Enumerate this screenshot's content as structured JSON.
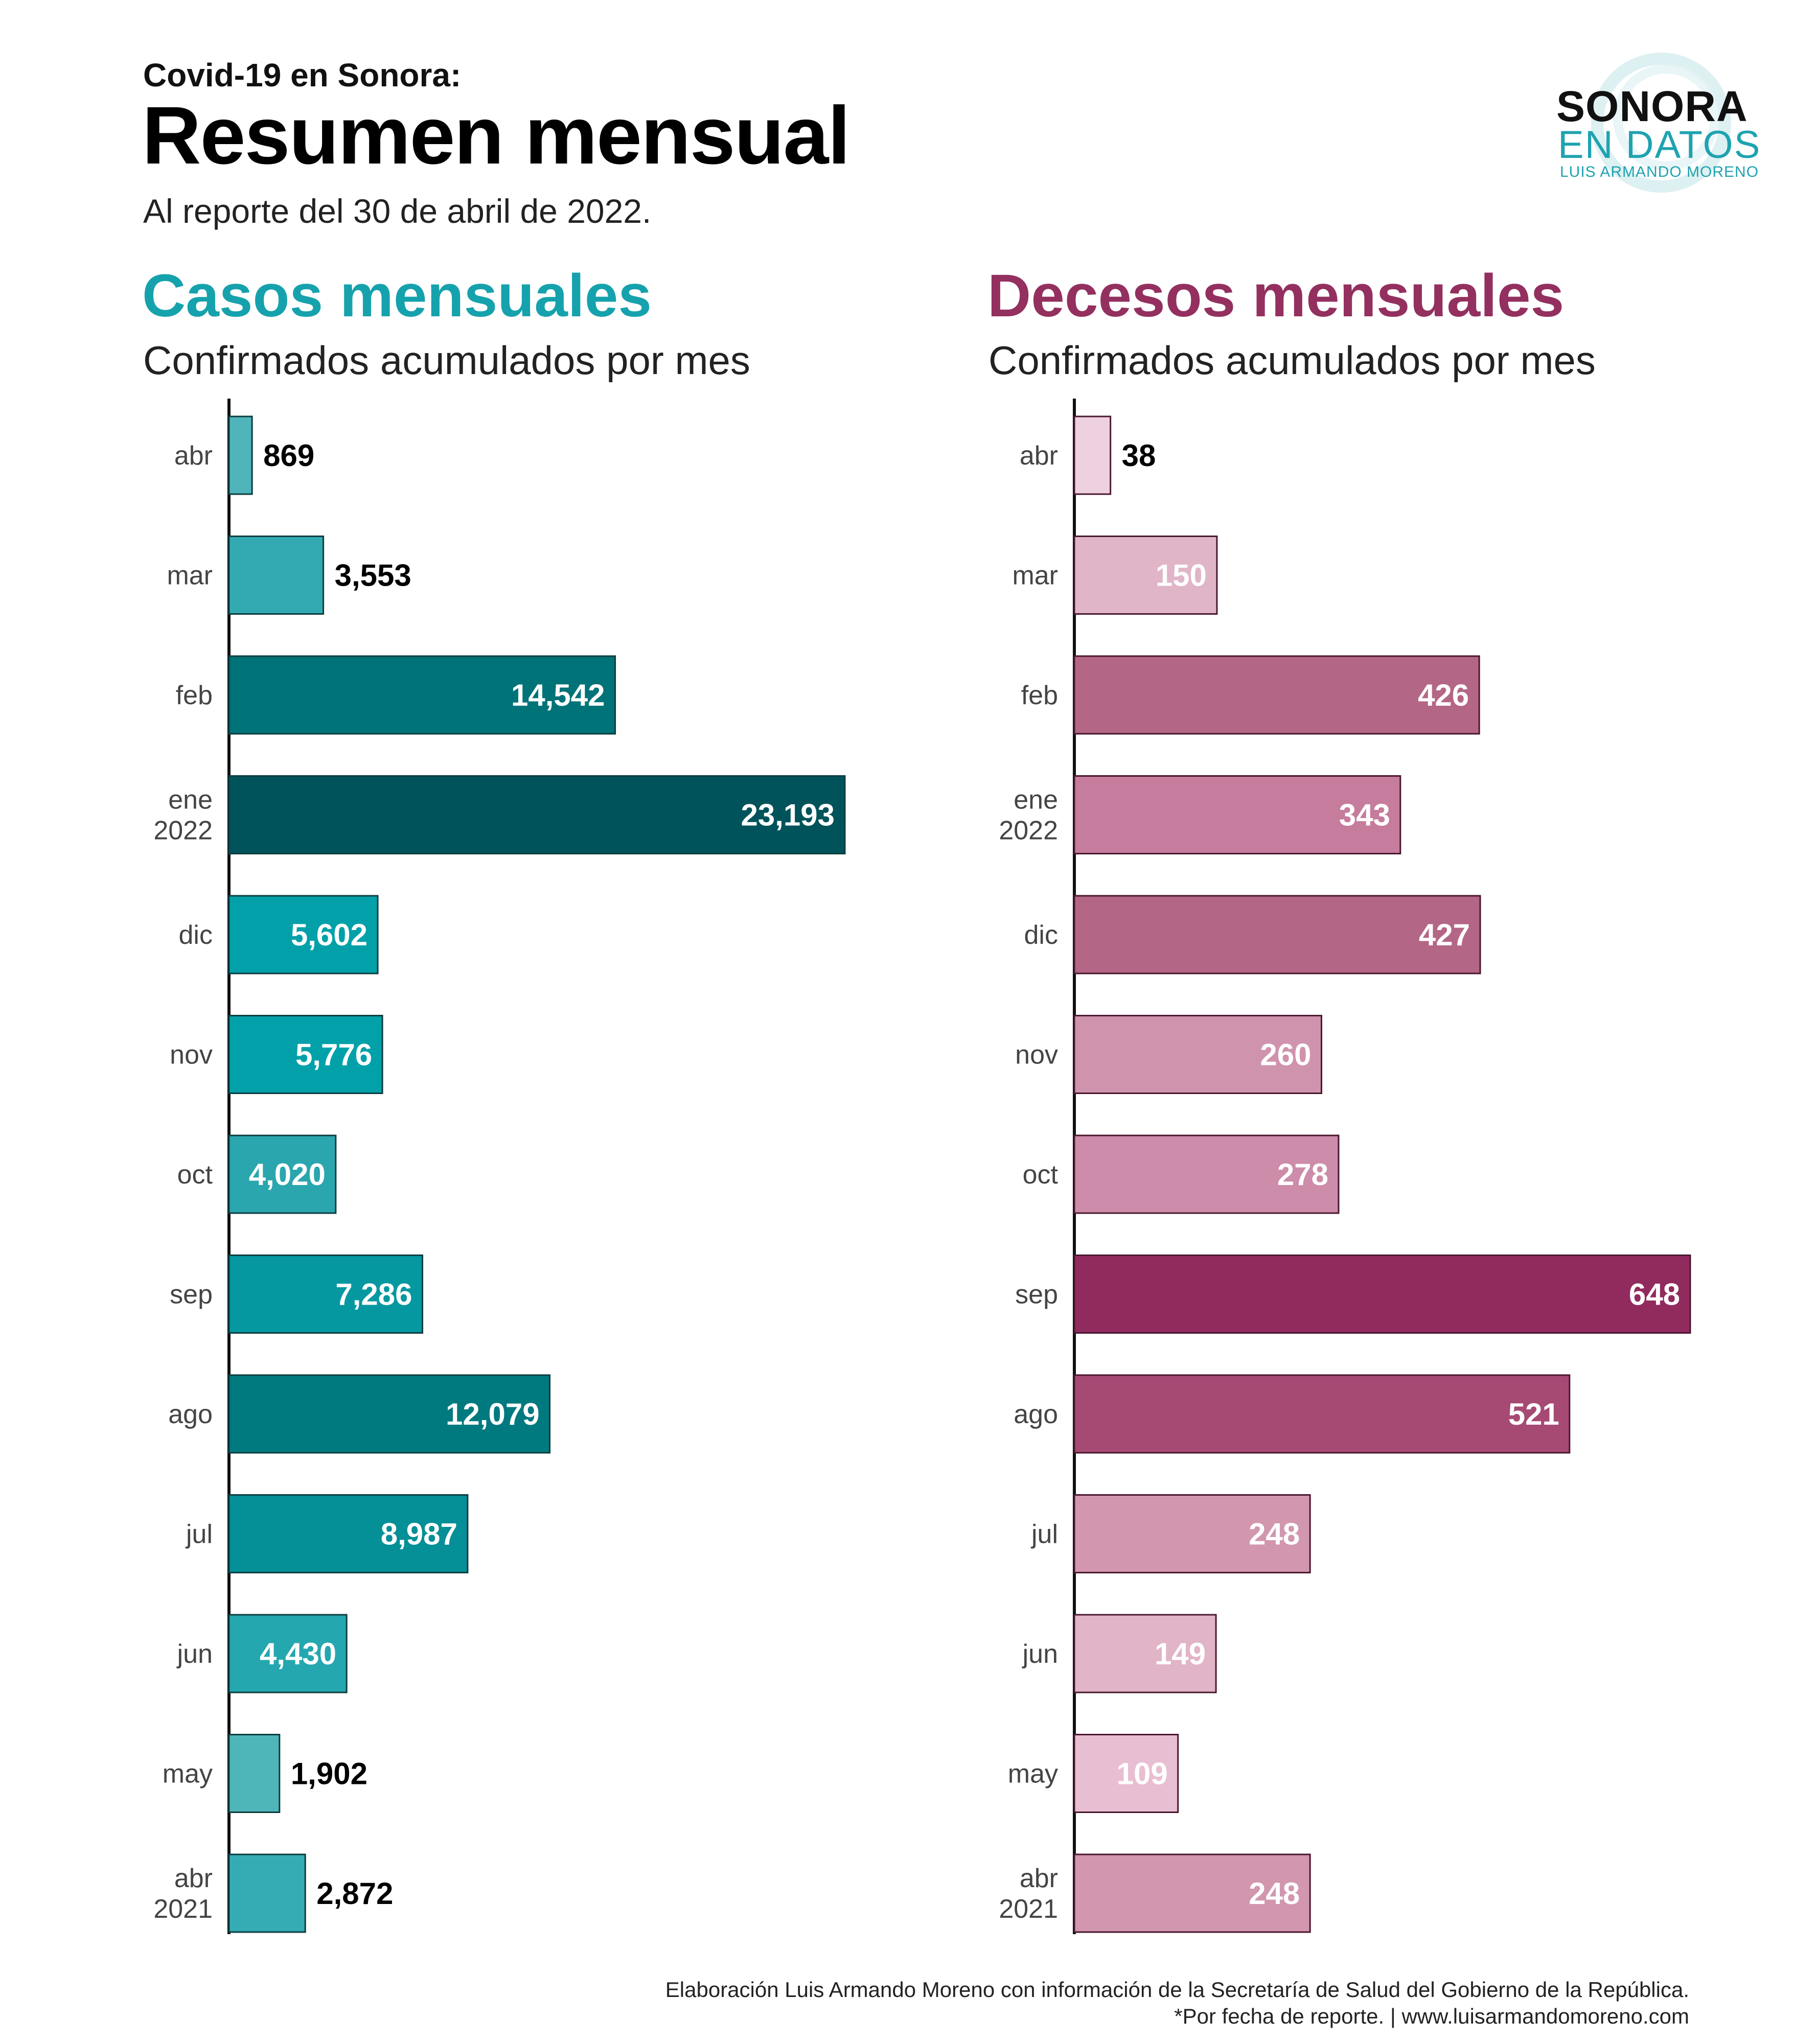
{
  "header": {
    "supertitle": "Covid-19  en Sonora:",
    "title": "Resumen mensual",
    "subtitle": "Al reporte del 30 de abril de 2022."
  },
  "logo": {
    "line1": "SONORA",
    "line2": "EN DATOS",
    "line3": "LUIS ARMANDO MORENO"
  },
  "footer": {
    "line1": "Elaboración Luis Armando Moreno con información de la Secretaría de Salud del Gobierno de la República.",
    "line2": "*Por fecha de reporte. | www.luisarmandomoreno.com"
  },
  "colors": {
    "casos_title": "#16a2ad",
    "decesos_title": "#93305f"
  },
  "chart_data": [
    {
      "type": "bar",
      "orientation": "horizontal",
      "title": "Casos mensuales",
      "subtitle": "Confirmados acumulados por mes",
      "categories": [
        "abr",
        "mar",
        "feb",
        "ene\n2022",
        "dic",
        "nov",
        "oct",
        "sep",
        "ago",
        "jul",
        "jun",
        "may",
        "abr\n2021"
      ],
      "values": [
        869,
        3553,
        14542,
        23193,
        5602,
        5776,
        4020,
        7286,
        12079,
        8987,
        4430,
        1902,
        2872
      ],
      "value_labels": [
        "869",
        "3,553",
        "14,542",
        "23,193",
        "5,602",
        "5,776",
        "4,020",
        "7,286",
        "12,079",
        "8,987",
        "4,430",
        "1,902",
        "2,872"
      ],
      "colors": [
        "#4fb5ba",
        "#33aab2",
        "#007378",
        "#00535a",
        "#02a1a9",
        "#02a1a9",
        "#2aa6ae",
        "#0598a0",
        "#007a7f",
        "#058f97",
        "#25a7af",
        "#4eb5b9",
        "#35acb3"
      ],
      "label_inside_threshold": 4000,
      "grid": false,
      "legend": "none"
    },
    {
      "type": "bar",
      "orientation": "horizontal",
      "title": "Decesos mensuales",
      "subtitle": "Confirmados acumulados por mes",
      "categories": [
        "abr",
        "mar",
        "feb",
        "ene\n2022",
        "dic",
        "nov",
        "oct",
        "sep",
        "ago",
        "jul",
        "jun",
        "may",
        "abr\n2021"
      ],
      "values": [
        38,
        150,
        426,
        343,
        427,
        260,
        278,
        648,
        521,
        248,
        149,
        109,
        248
      ],
      "value_labels": [
        "38",
        "150",
        "426",
        "343",
        "427",
        "260",
        "278",
        "648",
        "521",
        "248",
        "149",
        "109",
        "248"
      ],
      "colors": [
        "#edd1e0",
        "#e0b5c8",
        "#b46686",
        "#c67c9c",
        "#b46686",
        "#d093ad",
        "#cd8ca9",
        "#912b5e",
        "#a64a74",
        "#d296af",
        "#e1b4c7",
        "#e8bfd2",
        "#d296af"
      ],
      "label_inside_threshold": 100,
      "grid": false,
      "legend": "none"
    }
  ]
}
